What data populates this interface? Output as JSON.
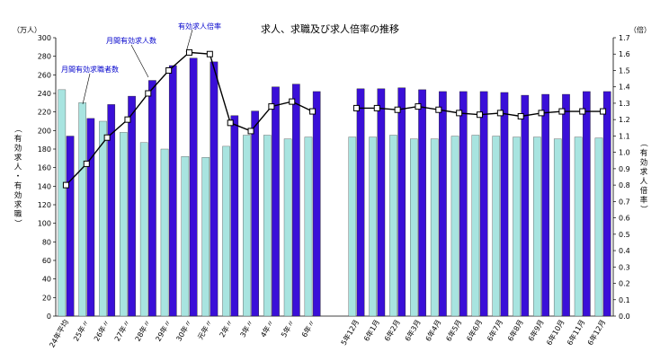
{
  "chart_data": {
    "type": "bar",
    "title": "求人、求職及び求人倍率の推移",
    "left_unit": "（万人）",
    "right_unit": "（倍）",
    "left_axis_label": "（有効求人・有効求職）",
    "right_axis_label": "（有効求人倍率）",
    "categories": [
      "24年平均",
      "25年〃",
      "26年〃",
      "27年〃",
      "28年〃",
      "29年〃",
      "30年〃",
      "元年〃",
      "2年〃",
      "3年〃",
      "4年〃",
      "5年〃",
      "6年〃",
      "5年12月",
      "6年1月",
      "6年2月",
      "6年3月",
      "6年4月",
      "6年5月",
      "6年6月",
      "6年7月",
      "6年8月",
      "6年9月",
      "6年10月",
      "6年11月",
      "6年12月"
    ],
    "gap_after_index": 12,
    "y_left_ticks": [
      "0",
      "20",
      "40",
      "60",
      "80",
      "100",
      "120",
      "140",
      "160",
      "180",
      "200",
      "220",
      "240",
      "260",
      "280",
      "300"
    ],
    "y_right_ticks": [
      "0.0",
      "0.1",
      "0.2",
      "0.3",
      "0.4",
      "0.5",
      "0.6",
      "0.7",
      "0.8",
      "0.9",
      "1.0",
      "1.1",
      "1.2",
      "1.3",
      "1.4",
      "1.5",
      "1.6",
      "1.7"
    ],
    "ylim_left": [
      0,
      300
    ],
    "ylim_right": [
      0,
      1.7
    ],
    "series": [
      {
        "name": "月間有効求職者数",
        "axis": "left",
        "type": "bar",
        "color": "#a8e4e0",
        "values": [
          244,
          230,
          210,
          198,
          187,
          180,
          172,
          171,
          183,
          195,
          195,
          191,
          193,
          193,
          193,
          195,
          191,
          191,
          194,
          195,
          194,
          193,
          193,
          191,
          193,
          192
        ]
      },
      {
        "name": "月間有効求人数",
        "axis": "left",
        "type": "bar",
        "color": "#3a0fd8",
        "values": [
          194,
          213,
          228,
          237,
          254,
          270,
          278,
          274,
          216,
          221,
          247,
          250,
          242,
          245,
          245,
          246,
          244,
          242,
          242,
          242,
          241,
          238,
          239,
          239,
          242,
          242
        ]
      },
      {
        "name": "有効求人倍率",
        "axis": "right",
        "type": "line",
        "color": "#000000",
        "values": [
          0.8,
          0.93,
          1.09,
          1.2,
          1.36,
          1.5,
          1.61,
          1.6,
          1.18,
          1.13,
          1.28,
          1.31,
          1.25,
          1.27,
          1.27,
          1.26,
          1.28,
          1.26,
          1.24,
          1.23,
          1.24,
          1.22,
          1.24,
          1.25,
          1.25,
          1.25
        ]
      }
    ],
    "annotations": [
      "有効求人倍率",
      "月間有効求人数",
      "月間有効求職者数"
    ]
  }
}
